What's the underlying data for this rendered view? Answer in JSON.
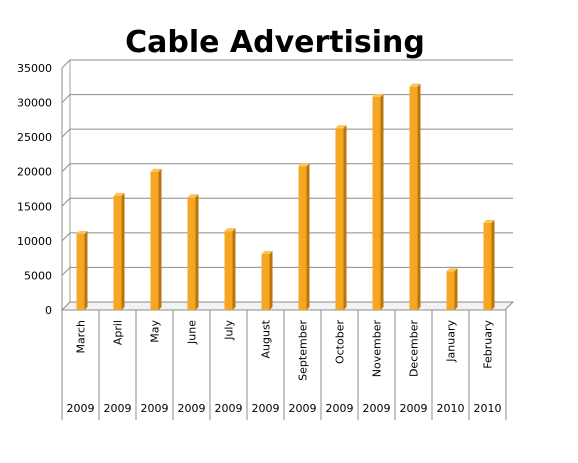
{
  "chart_data": {
    "type": "bar",
    "title": "Cable Advertising",
    "categories": [
      {
        "month": "March",
        "year": "2009"
      },
      {
        "month": "April",
        "year": "2009"
      },
      {
        "month": "May",
        "year": "2009"
      },
      {
        "month": "June",
        "year": "2009"
      },
      {
        "month": "July",
        "year": "2009"
      },
      {
        "month": "August",
        "year": "2009"
      },
      {
        "month": "September",
        "year": "2009"
      },
      {
        "month": "October",
        "year": "2009"
      },
      {
        "month": "November",
        "year": "2009"
      },
      {
        "month": "December",
        "year": "2009"
      },
      {
        "month": "January",
        "year": "2010"
      },
      {
        "month": "February",
        "year": "2010"
      }
    ],
    "values": [
      11000,
      16500,
      20000,
      16300,
      11400,
      8100,
      20800,
      26300,
      30800,
      32300,
      5600,
      12600
    ],
    "ylim": [
      0,
      35000
    ],
    "yticks": [
      "0",
      "5000",
      "10000",
      "15000",
      "20000",
      "25000",
      "30000",
      "35000"
    ],
    "grid": true,
    "legend": "none",
    "bar_color": "#F5A623",
    "bar_side_color": "#B8760F",
    "bar_top_color": "#FBC35A"
  }
}
